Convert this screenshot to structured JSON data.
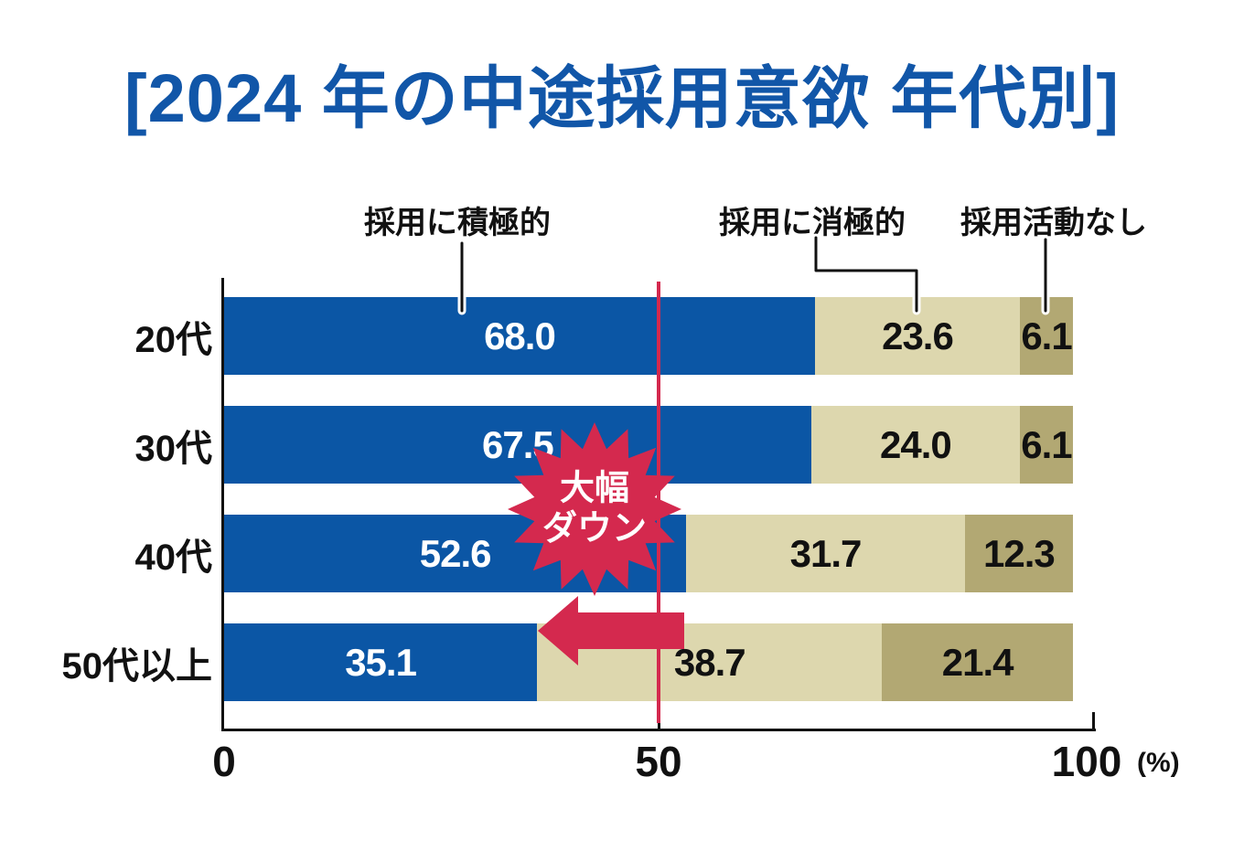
{
  "title": "[2024 年の中途採用意欲 年代別]",
  "badge": {
    "line1": "大幅",
    "line2": "ダウン"
  },
  "colors": {
    "title_blue": "#1156A8",
    "bar_active_blue": "#0B56A5",
    "bar_passive_beige": "#DDD7AE",
    "bar_none_khaki": "#B2A873",
    "accent_red": "#D4294E",
    "text_black": "#111111",
    "value_on_blue": "#FFFFFF"
  },
  "chart_data": {
    "type": "bar",
    "orientation": "horizontal-stacked",
    "title": "[2024 年の中途採用意欲 年代別]",
    "categories": [
      "20代",
      "30代",
      "40代",
      "50代以上"
    ],
    "series": [
      {
        "name": "採用に積極的",
        "color": "#0B56A5",
        "text_color": "#FFFFFF",
        "values": [
          68.0,
          67.5,
          52.6,
          35.1
        ]
      },
      {
        "name": "採用に消極的",
        "color": "#DDD7AE",
        "text_color": "#111111",
        "values": [
          23.6,
          24.0,
          31.7,
          38.7
        ]
      },
      {
        "name": "採用活動なし",
        "color": "#B2A873",
        "text_color": "#111111",
        "values": [
          6.1,
          6.1,
          12.3,
          21.4
        ]
      }
    ],
    "xlim": [
      0,
      100
    ],
    "x_ticks": [
      "0",
      "50",
      "100"
    ],
    "x_unit": "(%)",
    "grid": false,
    "legend_position": "top-labels-with-leader-lines",
    "annotations": {
      "reference_line_x": 50,
      "reference_line_color": "#D4294E",
      "badge_text": "大幅ダウン",
      "arrow": {
        "direction": "left",
        "from_value": 52.6,
        "to_value": 35.1,
        "color": "#D4294E"
      }
    }
  }
}
